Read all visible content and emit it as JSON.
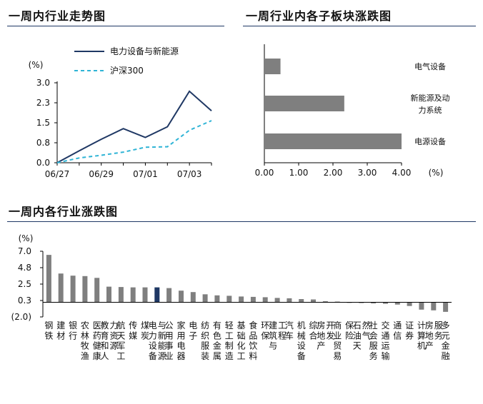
{
  "charts": {
    "left_title": "一周内行业走势图",
    "right_title": "一周行业内各子板块涨跌图",
    "bottom_title": "一周内各行业涨跌图"
  },
  "chart_data": [
    {
      "type": "line",
      "title": "一周内行业走势图",
      "ylabel": "(%)",
      "ylim": [
        0.0,
        3.0
      ],
      "yticks": [
        "0.0",
        "0.8",
        "1.5",
        "2.3",
        "3.0"
      ],
      "x_ticks": [
        "06/27",
        "06/29",
        "07/01",
        "07/03"
      ],
      "x": [
        "06/27",
        "06/28",
        "06/29",
        "06/30",
        "07/01",
        "07/02",
        "07/03",
        "07/04"
      ],
      "series": [
        {
          "name": "电力设备与新能源",
          "color": "#1f3864",
          "dash": "solid",
          "values": [
            0.0,
            0.45,
            0.88,
            1.28,
            0.95,
            1.35,
            2.68,
            1.95
          ]
        },
        {
          "name": "沪深300",
          "color": "#2fb4d6",
          "dash": "dashed",
          "values": [
            0.0,
            0.18,
            0.28,
            0.4,
            0.58,
            0.6,
            1.22,
            1.58
          ]
        }
      ],
      "legend": "top"
    },
    {
      "type": "bar",
      "orientation": "horizontal",
      "title": "一周行业内各子板块涨跌图",
      "xlabel": "(%)",
      "xlim": [
        0.0,
        4.0
      ],
      "xticks": [
        "0.00",
        "1.00",
        "2.00",
        "3.00",
        "4.00"
      ],
      "categories": [
        "电气设备",
        "新能源及动力系统",
        "电源设备"
      ],
      "category_labels": [
        [
          "电气设备"
        ],
        [
          "新能源及动",
          "力系统"
        ],
        [
          "电源设备"
        ]
      ],
      "values": [
        0.47,
        2.33,
        4.0
      ],
      "color": "#7f7f7f"
    },
    {
      "type": "bar",
      "title": "一周内各行业涨跌图",
      "ylabel": "(%)",
      "ylim": [
        -2.0,
        7.0
      ],
      "yticks": [
        "7.0",
        "4.8",
        "2.5",
        "0.3",
        "(2.0)"
      ],
      "categories": [
        "钢铁",
        "建材",
        "银行",
        "农林牧渔",
        "医药健康",
        "教育和人力资源",
        "航天军工",
        "传媒",
        "煤炭",
        "电力设备与新能源",
        "公用事业",
        "家用电器",
        "电子",
        "纺织服装",
        "有色金属",
        "轻工制造",
        "基础化工",
        "食品饮料",
        "环保",
        "建筑与工程",
        "汽车",
        "机械设备",
        "综合",
        "房地产开发",
        "商业贸易",
        "保险",
        "石油天然气",
        "社会服务",
        "交通运输",
        "通信",
        "证券",
        "计算机",
        "房地产服务",
        "多元金融"
      ],
      "values": [
        6.5,
        3.95,
        3.65,
        3.6,
        3.35,
        2.15,
        2.1,
        2.05,
        2.05,
        2.05,
        1.95,
        1.6,
        1.4,
        1.1,
        0.95,
        0.9,
        0.8,
        0.75,
        0.7,
        0.6,
        0.55,
        0.45,
        0.4,
        0.15,
        0.1,
        0.0,
        -0.1,
        -0.15,
        -0.2,
        -0.3,
        -0.5,
        -1.0,
        -1.1,
        -1.3
      ],
      "highlight": "电力设备与新能源",
      "color": "#7f7f7f",
      "highlight_color": "#1f3864"
    }
  ]
}
